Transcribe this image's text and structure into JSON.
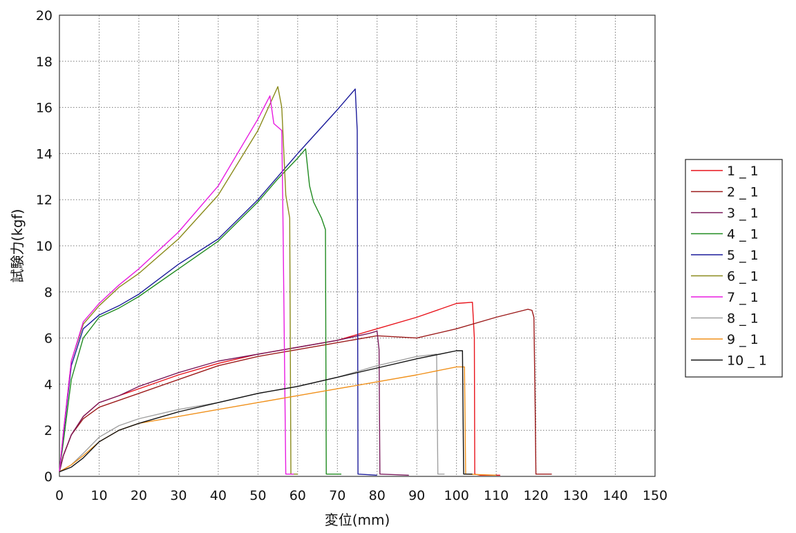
{
  "chart_data": {
    "type": "line",
    "title": "",
    "xlabel": "変位(mm)",
    "ylabel": "試験力(kgf)",
    "xlim": [
      0,
      150
    ],
    "ylim": [
      0,
      20
    ],
    "x_ticks": [
      0,
      10,
      20,
      30,
      40,
      50,
      60,
      70,
      80,
      90,
      100,
      110,
      120,
      130,
      140,
      150
    ],
    "y_ticks": [
      0,
      2,
      4,
      6,
      8,
      10,
      12,
      14,
      16,
      18,
      20
    ],
    "grid": true,
    "legend_position": "right",
    "series": [
      {
        "name": "1 _ 1",
        "color": "#e8121a",
        "points": [
          [
            0,
            0.2
          ],
          [
            1,
            0.9
          ],
          [
            3,
            1.8
          ],
          [
            6,
            2.6
          ],
          [
            10,
            3.2
          ],
          [
            15,
            3.5
          ],
          [
            20,
            3.8
          ],
          [
            30,
            4.4
          ],
          [
            40,
            4.9
          ],
          [
            50,
            5.3
          ],
          [
            60,
            5.6
          ],
          [
            70,
            5.9
          ],
          [
            80,
            6.4
          ],
          [
            90,
            6.9
          ],
          [
            100,
            7.5
          ],
          [
            104,
            7.55
          ],
          [
            104.5,
            6.0
          ],
          [
            104.6,
            0.1
          ],
          [
            106,
            0.05
          ],
          [
            111,
            0.05
          ]
        ]
      },
      {
        "name": "2 _ 1",
        "color": "#9c1a1a",
        "points": [
          [
            0,
            0.2
          ],
          [
            1,
            0.9
          ],
          [
            3,
            1.8
          ],
          [
            6,
            2.5
          ],
          [
            10,
            3.0
          ],
          [
            15,
            3.3
          ],
          [
            20,
            3.6
          ],
          [
            30,
            4.2
          ],
          [
            40,
            4.8
          ],
          [
            50,
            5.2
          ],
          [
            60,
            5.5
          ],
          [
            70,
            5.8
          ],
          [
            80,
            6.1
          ],
          [
            85,
            6.05
          ],
          [
            90,
            6.0
          ],
          [
            100,
            6.4
          ],
          [
            110,
            6.9
          ],
          [
            118,
            7.25
          ],
          [
            119,
            7.2
          ],
          [
            119.5,
            6.9
          ],
          [
            119.8,
            3.0
          ],
          [
            120,
            0.1
          ],
          [
            124,
            0.1
          ]
        ]
      },
      {
        "name": "3 _ 1",
        "color": "#7a1a5c",
        "points": [
          [
            0,
            0.2
          ],
          [
            1,
            0.9
          ],
          [
            3,
            1.8
          ],
          [
            6,
            2.6
          ],
          [
            10,
            3.2
          ],
          [
            15,
            3.5
          ],
          [
            20,
            3.9
          ],
          [
            30,
            4.5
          ],
          [
            40,
            5.0
          ],
          [
            50,
            5.3
          ],
          [
            60,
            5.6
          ],
          [
            70,
            5.9
          ],
          [
            78,
            6.2
          ],
          [
            80,
            6.3
          ],
          [
            80.5,
            5.5
          ],
          [
            80.7,
            0.1
          ],
          [
            88,
            0.05
          ]
        ]
      },
      {
        "name": "4 _ 1",
        "color": "#1f8a1f",
        "points": [
          [
            0,
            0.2
          ],
          [
            1,
            1.5
          ],
          [
            3,
            4.2
          ],
          [
            6,
            6.0
          ],
          [
            10,
            6.9
          ],
          [
            15,
            7.3
          ],
          [
            20,
            7.8
          ],
          [
            30,
            9.0
          ],
          [
            40,
            10.2
          ],
          [
            50,
            11.9
          ],
          [
            55,
            12.9
          ],
          [
            60,
            13.8
          ],
          [
            62,
            14.2
          ],
          [
            63,
            12.6
          ],
          [
            64,
            11.9
          ],
          [
            66,
            11.2
          ],
          [
            67,
            10.7
          ],
          [
            67.2,
            0.1
          ],
          [
            71,
            0.1
          ]
        ]
      },
      {
        "name": "5 _ 1",
        "color": "#1a1a9a",
        "points": [
          [
            0,
            0.2
          ],
          [
            1,
            1.8
          ],
          [
            3,
            4.8
          ],
          [
            6,
            6.4
          ],
          [
            10,
            7.0
          ],
          [
            15,
            7.4
          ],
          [
            20,
            7.9
          ],
          [
            30,
            9.2
          ],
          [
            40,
            10.3
          ],
          [
            50,
            12.0
          ],
          [
            55,
            13.0
          ],
          [
            60,
            14.0
          ],
          [
            70,
            15.9
          ],
          [
            74.5,
            16.8
          ],
          [
            75,
            15.0
          ],
          [
            75.2,
            0.1
          ],
          [
            80,
            0.05
          ]
        ]
      },
      {
        "name": "6 _ 1",
        "color": "#8a8a1a",
        "points": [
          [
            0,
            0.2
          ],
          [
            1,
            1.9
          ],
          [
            3,
            5.0
          ],
          [
            6,
            6.6
          ],
          [
            10,
            7.4
          ],
          [
            15,
            8.2
          ],
          [
            20,
            8.8
          ],
          [
            30,
            10.3
          ],
          [
            40,
            12.2
          ],
          [
            50,
            15.0
          ],
          [
            55,
            16.9
          ],
          [
            56,
            16.0
          ],
          [
            57,
            12.2
          ],
          [
            58,
            11.2
          ],
          [
            58.3,
            0.1
          ],
          [
            60,
            0.1
          ]
        ]
      },
      {
        "name": "7 _ 1",
        "color": "#e81ae0",
        "points": [
          [
            0,
            0.2
          ],
          [
            1,
            1.9
          ],
          [
            3,
            5.0
          ],
          [
            6,
            6.7
          ],
          [
            10,
            7.5
          ],
          [
            15,
            8.3
          ],
          [
            20,
            9.0
          ],
          [
            30,
            10.6
          ],
          [
            40,
            12.6
          ],
          [
            50,
            15.5
          ],
          [
            53,
            16.5
          ],
          [
            54,
            15.3
          ],
          [
            56,
            15.0
          ],
          [
            56.3,
            11.2
          ],
          [
            57,
            0.1
          ],
          [
            59,
            0.1
          ]
        ]
      },
      {
        "name": "8 _ 1",
        "color": "#a0a0a0",
        "points": [
          [
            0,
            0.2
          ],
          [
            3,
            0.5
          ],
          [
            6,
            1.0
          ],
          [
            10,
            1.7
          ],
          [
            15,
            2.2
          ],
          [
            20,
            2.5
          ],
          [
            30,
            2.9
          ],
          [
            40,
            3.2
          ],
          [
            50,
            3.6
          ],
          [
            60,
            3.9
          ],
          [
            70,
            4.3
          ],
          [
            80,
            4.8
          ],
          [
            90,
            5.2
          ],
          [
            95,
            5.3
          ],
          [
            95.3,
            0.1
          ],
          [
            97,
            0.1
          ]
        ]
      },
      {
        "name": "9 _ 1",
        "color": "#f0901a",
        "points": [
          [
            0,
            0.2
          ],
          [
            3,
            0.5
          ],
          [
            6,
            0.9
          ],
          [
            10,
            1.5
          ],
          [
            15,
            2.0
          ],
          [
            20,
            2.3
          ],
          [
            30,
            2.6
          ],
          [
            40,
            2.9
          ],
          [
            50,
            3.2
          ],
          [
            60,
            3.5
          ],
          [
            70,
            3.8
          ],
          [
            80,
            4.1
          ],
          [
            90,
            4.4
          ],
          [
            100,
            4.75
          ],
          [
            102,
            4.75
          ],
          [
            102.3,
            0.1
          ],
          [
            110,
            0.05
          ]
        ]
      },
      {
        "name": "10 _ 1",
        "color": "#111111",
        "points": [
          [
            0,
            0.2
          ],
          [
            3,
            0.4
          ],
          [
            6,
            0.8
          ],
          [
            10,
            1.5
          ],
          [
            15,
            2.0
          ],
          [
            20,
            2.3
          ],
          [
            30,
            2.8
          ],
          [
            40,
            3.2
          ],
          [
            50,
            3.6
          ],
          [
            60,
            3.9
          ],
          [
            70,
            4.3
          ],
          [
            80,
            4.7
          ],
          [
            90,
            5.1
          ],
          [
            100,
            5.45
          ],
          [
            101.5,
            5.45
          ],
          [
            101.8,
            0.1
          ],
          [
            104,
            0.1
          ]
        ]
      }
    ]
  }
}
